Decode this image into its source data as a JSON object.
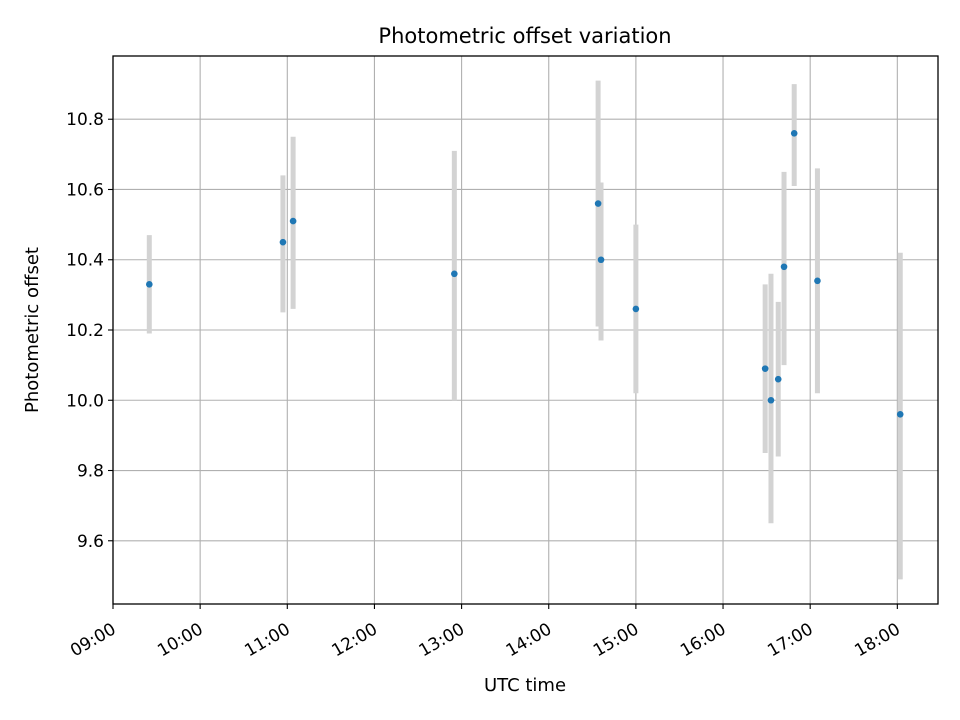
{
  "chart_data": {
    "type": "scatter",
    "title": "Photometric offset variation",
    "xlabel": "UTC time",
    "ylabel": "Photometric offset",
    "xlim": [
      "09:00",
      "18:28"
    ],
    "ylim": [
      9.42,
      10.98
    ],
    "grid": true,
    "x_tick_labels": [
      "09:00",
      "10:00",
      "11:00",
      "12:00",
      "13:00",
      "14:00",
      "15:00",
      "16:00",
      "17:00",
      "18:00"
    ],
    "y_tick_labels": [
      "9.6",
      "9.8",
      "10.0",
      "10.2",
      "10.4",
      "10.6",
      "10.8"
    ],
    "point_color": "#1f77b4",
    "errorbar_color": "#d3d3d3",
    "points": [
      {
        "time": "09:25",
        "y": 10.33,
        "ylow": 10.19,
        "yhigh": 10.47
      },
      {
        "time": "10:57",
        "y": 10.45,
        "ylow": 10.25,
        "yhigh": 10.64
      },
      {
        "time": "11:04",
        "y": 10.51,
        "ylow": 10.26,
        "yhigh": 10.75
      },
      {
        "time": "12:55",
        "y": 10.36,
        "ylow": 10.0,
        "yhigh": 10.71
      },
      {
        "time": "14:34",
        "y": 10.56,
        "ylow": 10.21,
        "yhigh": 10.91
      },
      {
        "time": "14:36",
        "y": 10.4,
        "ylow": 10.17,
        "yhigh": 10.62
      },
      {
        "time": "15:00",
        "y": 10.26,
        "ylow": 10.02,
        "yhigh": 10.5
      },
      {
        "time": "16:29",
        "y": 10.09,
        "ylow": 9.85,
        "yhigh": 10.33
      },
      {
        "time": "16:33",
        "y": 10.0,
        "ylow": 9.65,
        "yhigh": 10.36
      },
      {
        "time": "16:38",
        "y": 10.06,
        "ylow": 9.84,
        "yhigh": 10.28
      },
      {
        "time": "16:42",
        "y": 10.38,
        "ylow": 10.1,
        "yhigh": 10.65
      },
      {
        "time": "16:49",
        "y": 10.76,
        "ylow": 10.61,
        "yhigh": 10.9
      },
      {
        "time": "17:05",
        "y": 10.34,
        "ylow": 10.02,
        "yhigh": 10.66
      },
      {
        "time": "18:02",
        "y": 9.96,
        "ylow": 9.49,
        "yhigh": 10.42
      }
    ]
  }
}
